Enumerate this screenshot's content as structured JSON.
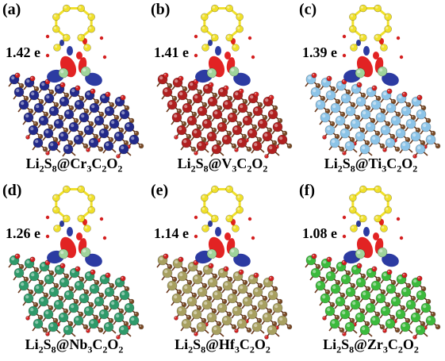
{
  "panels": [
    {
      "label": "(a)",
      "charge": "1.42 e",
      "f1": "Li",
      "s1": "2",
      "f2": "S",
      "s2": "8",
      "f3": "@Cr",
      "s3": "3",
      "f4": "C",
      "s4": "2",
      "f5": "O",
      "s5": "2",
      "metal_color": "#232a8a"
    },
    {
      "label": "(b)",
      "charge": "1.41 e",
      "f1": "Li",
      "s1": "2",
      "f2": "S",
      "s2": "8",
      "f3": "@V",
      "s3": "3",
      "f4": "C",
      "s4": "2",
      "f5": "O",
      "s5": "2",
      "metal_color": "#b02020"
    },
    {
      "label": "(c)",
      "charge": "1.39 e",
      "f1": "Li",
      "s1": "2",
      "f2": "S",
      "s2": "8",
      "f3": "@Ti",
      "s3": "3",
      "f4": "C",
      "s4": "2",
      "f5": "O",
      "s5": "2",
      "metal_color": "#8cc4e8"
    },
    {
      "label": "(d)",
      "charge": "1.26 e",
      "f1": "Li",
      "s1": "2",
      "f2": "S",
      "s2": "8",
      "f3": "@Nb",
      "s3": "3",
      "f4": "C",
      "s4": "2",
      "f5": "O",
      "s5": "2",
      "metal_color": "#2f9a6a"
    },
    {
      "label": "(e)",
      "charge": "1.14 e",
      "f1": "Li",
      "s1": "2",
      "f2": "S",
      "s2": "8",
      "f3": "@Hf",
      "s3": "3",
      "f4": "C",
      "s4": "2",
      "f5": "O",
      "s5": "2",
      "metal_color": "#a8a060"
    },
    {
      "label": "(f)",
      "charge": "1.08 e",
      "f1": "Li",
      "s1": "2",
      "f2": "S",
      "s2": "8",
      "f3": "@Zr",
      "s3": "3",
      "f4": "C",
      "s4": "2",
      "f5": "O",
      "s5": "2",
      "metal_color": "#3cba3c"
    }
  ],
  "colors": {
    "sulfur": "#f0e02a",
    "carbon": "#7a4a25",
    "oxygen": "#d42020",
    "lithium": "#9fd49a",
    "accumulation": "#e01010",
    "depletion": "#1a2a9a"
  }
}
